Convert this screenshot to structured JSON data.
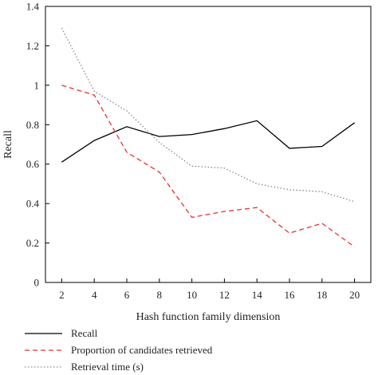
{
  "chart_data": {
    "type": "line",
    "x": [
      2,
      4,
      6,
      8,
      10,
      12,
      14,
      16,
      18,
      20
    ],
    "xlabel": "Hash function family dimension",
    "ylabel": "Recall",
    "xlim": [
      1,
      21
    ],
    "ylim": [
      0,
      1.4
    ],
    "x_ticks": [
      "2",
      "4",
      "6",
      "8",
      "10",
      "12",
      "14",
      "16",
      "18",
      "20"
    ],
    "y_ticks": [
      "0",
      "0.2",
      "0.4",
      "0.6",
      "0.8",
      "1",
      "1.2",
      "1.4"
    ],
    "grid": false,
    "legend_position": "bottom-left",
    "series": [
      {
        "name": "Recall",
        "style": "solid",
        "color": "#000000",
        "values": [
          0.61,
          0.72,
          0.79,
          0.74,
          0.75,
          0.78,
          0.82,
          0.68,
          0.69,
          0.81
        ]
      },
      {
        "name": "Proportion of candidates retrieved",
        "style": "dashed",
        "color": "#e8322f",
        "values": [
          1.0,
          0.95,
          0.66,
          0.56,
          0.33,
          0.36,
          0.38,
          0.25,
          0.3,
          0.18
        ]
      },
      {
        "name": "Retrieval time (s)",
        "style": "dotted",
        "color": "#888888",
        "values": [
          1.29,
          0.97,
          0.87,
          0.71,
          0.59,
          0.58,
          0.5,
          0.47,
          0.46,
          0.41
        ]
      }
    ]
  }
}
